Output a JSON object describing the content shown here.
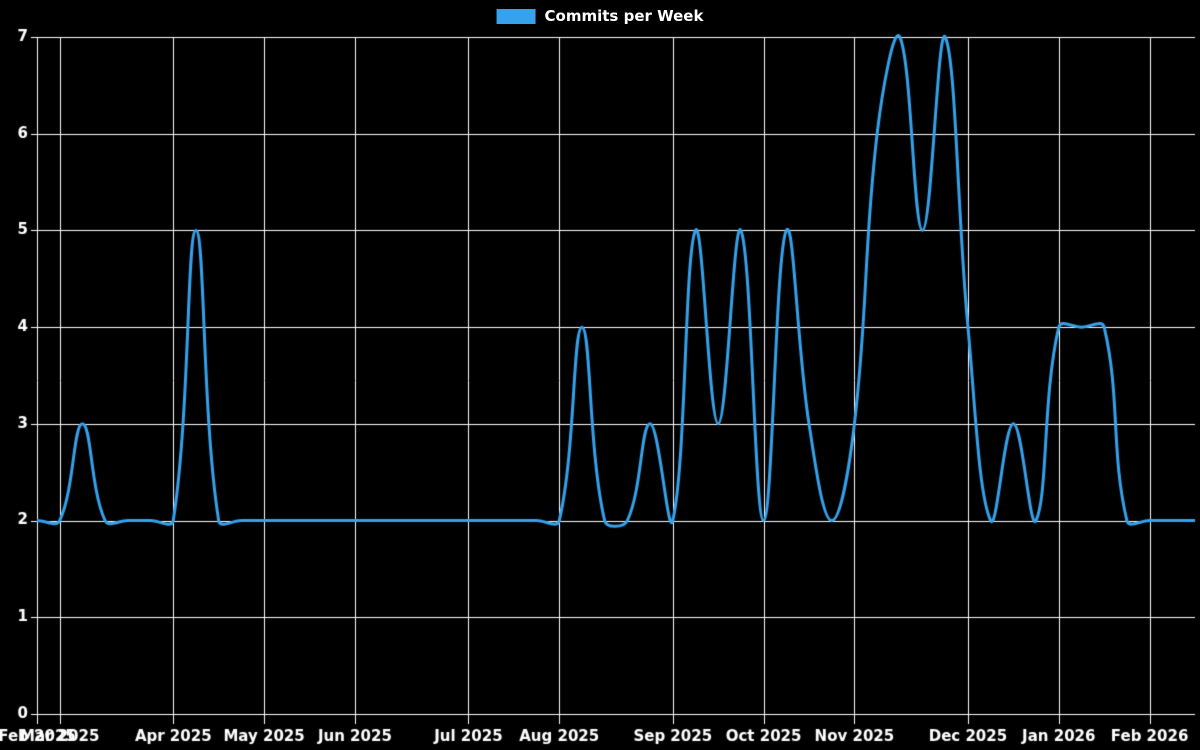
{
  "legend": {
    "label": "Commits per Week",
    "color": "#36a2eb"
  },
  "chart_data": {
    "type": "line",
    "title": "Commits per Week",
    "background_color": "#000000",
    "grid": true,
    "grid_color": "#ffffff",
    "axis_text_color": "#ffffff",
    "legend_position": "top-center",
    "ylim": [
      0,
      7
    ],
    "y_ticks": [
      0,
      1,
      2,
      3,
      4,
      5,
      6,
      7
    ],
    "x_unit": "week",
    "x_tick_labels": [
      "Feb 2025",
      "Mar 2025",
      "Apr 2025",
      "May 2025",
      "Jun 2025",
      "Jul 2025",
      "Aug 2025",
      "Sep 2025",
      "Oct 2025",
      "Nov 2025",
      "Dec 2025",
      "Jan 2026",
      "Feb 2026"
    ],
    "x_tick_week_indices": [
      0,
      1,
      6,
      10,
      14,
      19,
      23,
      28,
      32,
      36,
      41,
      45,
      49
    ],
    "series": [
      {
        "name": "Commits per Week",
        "color": "#36a2eb",
        "line_width": 3,
        "tension": 0.4,
        "values": [
          2,
          2,
          3,
          2,
          2,
          2,
          2,
          5,
          2,
          2,
          2,
          2,
          2,
          2,
          2,
          2,
          2,
          2,
          2,
          2,
          2,
          2,
          2,
          2,
          4,
          2,
          2,
          3,
          2,
          5,
          3,
          5,
          2,
          5,
          3,
          2,
          3,
          6,
          7,
          5,
          7,
          4,
          2,
          3,
          2,
          4,
          4,
          4,
          2,
          2,
          2,
          2
        ]
      }
    ]
  }
}
